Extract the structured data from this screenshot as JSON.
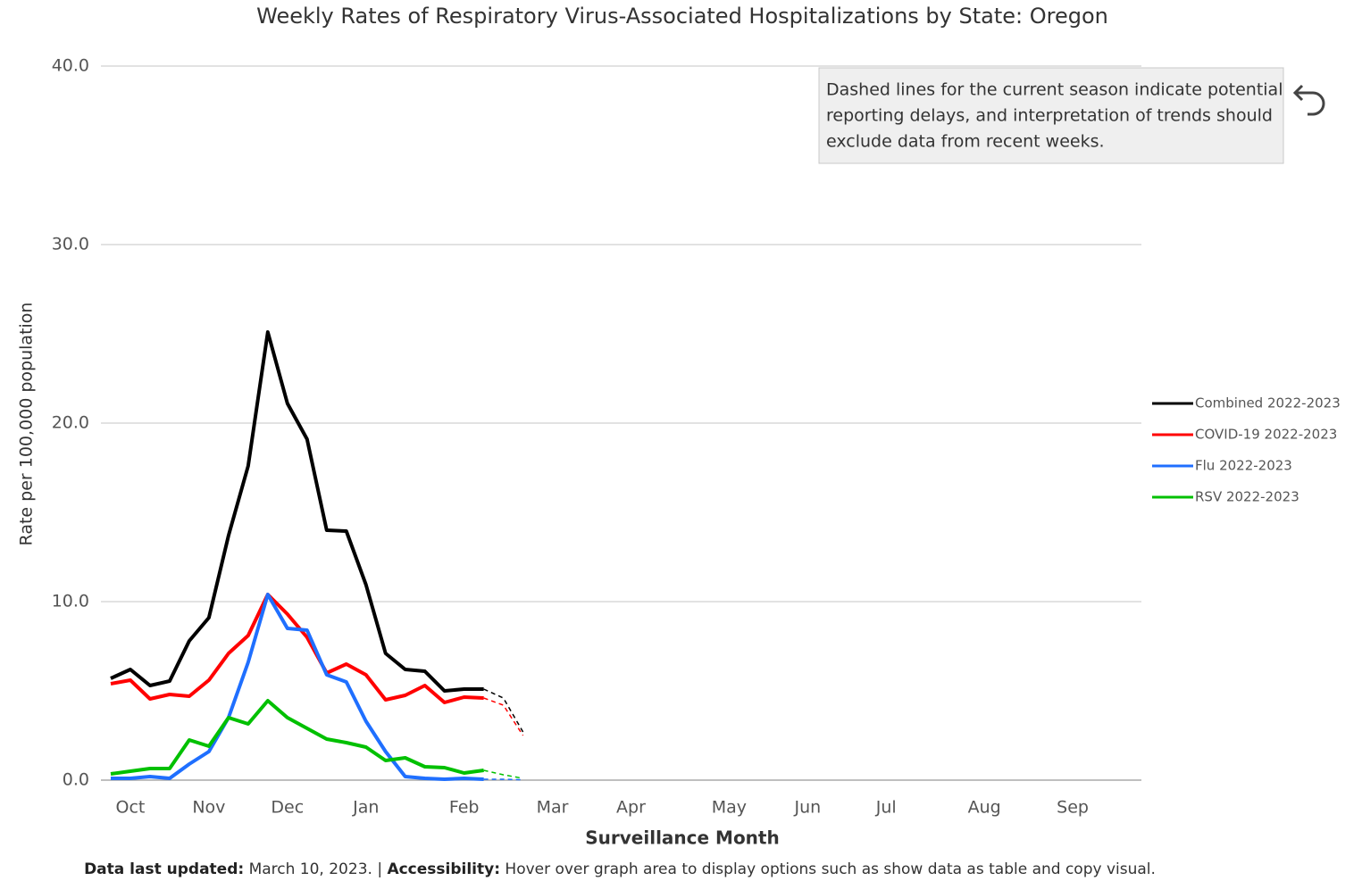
{
  "chart_data": {
    "type": "line",
    "title": "Weekly Rates of Respiratory Virus-Associated Hospitalizations by State: Oregon",
    "x_label": "Surveillance Month",
    "y_label": "Rate per 100,000 population",
    "x": [
      0,
      1,
      2,
      3,
      4,
      5,
      6,
      7,
      8,
      9,
      10,
      11,
      12,
      13,
      14,
      15,
      16,
      17,
      18,
      19,
      20,
      21
    ],
    "xlim": [
      -0.5,
      52.5
    ],
    "xticks": [
      {
        "value": 1,
        "label": "Oct"
      },
      {
        "value": 5,
        "label": "Nov"
      },
      {
        "value": 9,
        "label": "Dec"
      },
      {
        "value": 13,
        "label": "Jan"
      },
      {
        "value": 18,
        "label": "Feb"
      },
      {
        "value": 22.5,
        "label": "Mar"
      },
      {
        "value": 26.5,
        "label": "Apr"
      },
      {
        "value": 31.5,
        "label": "May"
      },
      {
        "value": 35.5,
        "label": "Jun"
      },
      {
        "value": 39.5,
        "label": "Jul"
      },
      {
        "value": 44.5,
        "label": "Aug"
      },
      {
        "value": 49,
        "label": "Sep"
      }
    ],
    "ylim": [
      0,
      40
    ],
    "yticks": [
      {
        "value": 0,
        "label": "0.0"
      },
      {
        "value": 10,
        "label": "10.0"
      },
      {
        "value": 20,
        "label": "20.0"
      },
      {
        "value": 30,
        "label": "30.0"
      },
      {
        "value": 40,
        "label": "40.0"
      }
    ],
    "grid": true,
    "dashed_from": 19,
    "legend": "right",
    "series": [
      {
        "name": "Combined 2022-2023",
        "color": "#000000",
        "values": [
          5.7,
          6.2,
          5.3,
          5.55,
          7.8,
          9.1,
          13.7,
          17.6,
          25.1,
          21.1,
          19.1,
          14.0,
          13.95,
          10.95,
          7.1,
          6.2,
          6.1,
          5.0,
          5.1,
          5.1,
          4.6,
          2.7
        ]
      },
      {
        "name": "COVID-19 2022-2023",
        "color": "#ff0000",
        "values": [
          5.4,
          5.6,
          4.55,
          4.8,
          4.7,
          5.6,
          7.1,
          8.1,
          10.4,
          9.3,
          8.0,
          6.0,
          6.5,
          5.9,
          4.5,
          4.75,
          5.3,
          4.35,
          4.65,
          4.6,
          4.2,
          2.5
        ]
      },
      {
        "name": "Flu 2022-2023",
        "color": "#1f6fff",
        "values": [
          0.1,
          0.1,
          0.2,
          0.1,
          0.9,
          1.6,
          3.5,
          6.6,
          10.4,
          8.5,
          8.4,
          5.9,
          5.5,
          3.3,
          1.6,
          0.2,
          0.1,
          0.05,
          0.1,
          0.05,
          0.05,
          0.02
        ]
      },
      {
        "name": "RSV 2022-2023",
        "color": "#00c000",
        "values": [
          0.35,
          0.5,
          0.65,
          0.65,
          2.25,
          1.9,
          3.5,
          3.15,
          4.45,
          3.5,
          2.9,
          2.3,
          2.1,
          1.85,
          1.1,
          1.25,
          0.75,
          0.7,
          0.4,
          0.55,
          0.3,
          0.1
        ]
      }
    ],
    "annotation": [
      "Dashed lines for the current season indicate potential",
      "reporting delays, and interpretation of trends should",
      "exclude data from recent weeks."
    ],
    "footer": {
      "updated_label": "Data last updated:",
      "updated_text": "March 10, 2023. |",
      "access_label": "Accessibility:",
      "access_text": "Hover over graph area to display options such as show data as table and copy visual."
    }
  }
}
